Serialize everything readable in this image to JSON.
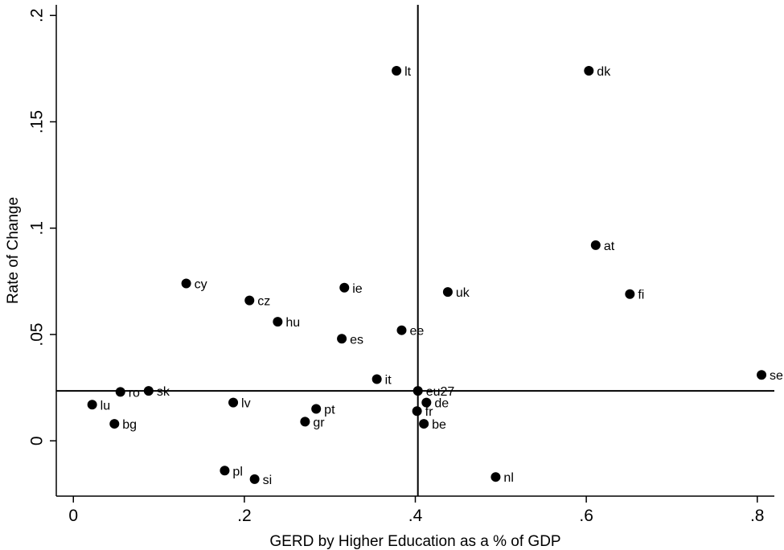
{
  "chart_data": {
    "type": "scatter",
    "title": "",
    "xlabel": "GERD by Higher Education as a % of GDP",
    "ylabel": "Rate of Change",
    "xlim": [
      -0.02,
      0.82
    ],
    "ylim": [
      -0.026,
      0.205
    ],
    "x_ticks": [
      0,
      0.2,
      0.4,
      0.6,
      0.8
    ],
    "x_tick_labels": [
      "0",
      ".2",
      ".4",
      ".6",
      ".8"
    ],
    "y_ticks": [
      0,
      0.05,
      0.1,
      0.15,
      0.2
    ],
    "y_tick_labels": [
      "0",
      ".05",
      ".1",
      ".15",
      ".2"
    ],
    "grid": false,
    "legend": "none",
    "reference_lines": {
      "x": 0.403,
      "y": 0.0235
    },
    "points": [
      {
        "label": "lt",
        "x": 0.378,
        "y": 0.174
      },
      {
        "label": "dk",
        "x": 0.603,
        "y": 0.174
      },
      {
        "label": "at",
        "x": 0.611,
        "y": 0.092
      },
      {
        "label": "cy",
        "x": 0.132,
        "y": 0.074
      },
      {
        "label": "ie",
        "x": 0.317,
        "y": 0.072
      },
      {
        "label": "uk",
        "x": 0.438,
        "y": 0.07
      },
      {
        "label": "fi",
        "x": 0.651,
        "y": 0.069
      },
      {
        "label": "cz",
        "x": 0.206,
        "y": 0.066
      },
      {
        "label": "hu",
        "x": 0.239,
        "y": 0.056
      },
      {
        "label": "ee",
        "x": 0.384,
        "y": 0.052
      },
      {
        "label": "es",
        "x": 0.314,
        "y": 0.048
      },
      {
        "label": "se",
        "x": 0.805,
        "y": 0.031
      },
      {
        "label": "it",
        "x": 0.355,
        "y": 0.029
      },
      {
        "label": "eu27",
        "x": 0.403,
        "y": 0.0235
      },
      {
        "label": "ro",
        "x": 0.055,
        "y": 0.023
      },
      {
        "label": "sk",
        "x": 0.088,
        "y": 0.0235
      },
      {
        "label": "de",
        "x": 0.413,
        "y": 0.018
      },
      {
        "label": "lv",
        "x": 0.187,
        "y": 0.018
      },
      {
        "label": "lu",
        "x": 0.022,
        "y": 0.017
      },
      {
        "label": "pt",
        "x": 0.284,
        "y": 0.015
      },
      {
        "label": "fr",
        "x": 0.402,
        "y": 0.014
      },
      {
        "label": "gr",
        "x": 0.271,
        "y": 0.009
      },
      {
        "label": "bg",
        "x": 0.048,
        "y": 0.008
      },
      {
        "label": "be",
        "x": 0.41,
        "y": 0.008
      },
      {
        "label": "pl",
        "x": 0.177,
        "y": -0.014
      },
      {
        "label": "nl",
        "x": 0.494,
        "y": -0.017
      },
      {
        "label": "si",
        "x": 0.212,
        "y": -0.018
      }
    ],
    "marker_color": "#000000"
  }
}
